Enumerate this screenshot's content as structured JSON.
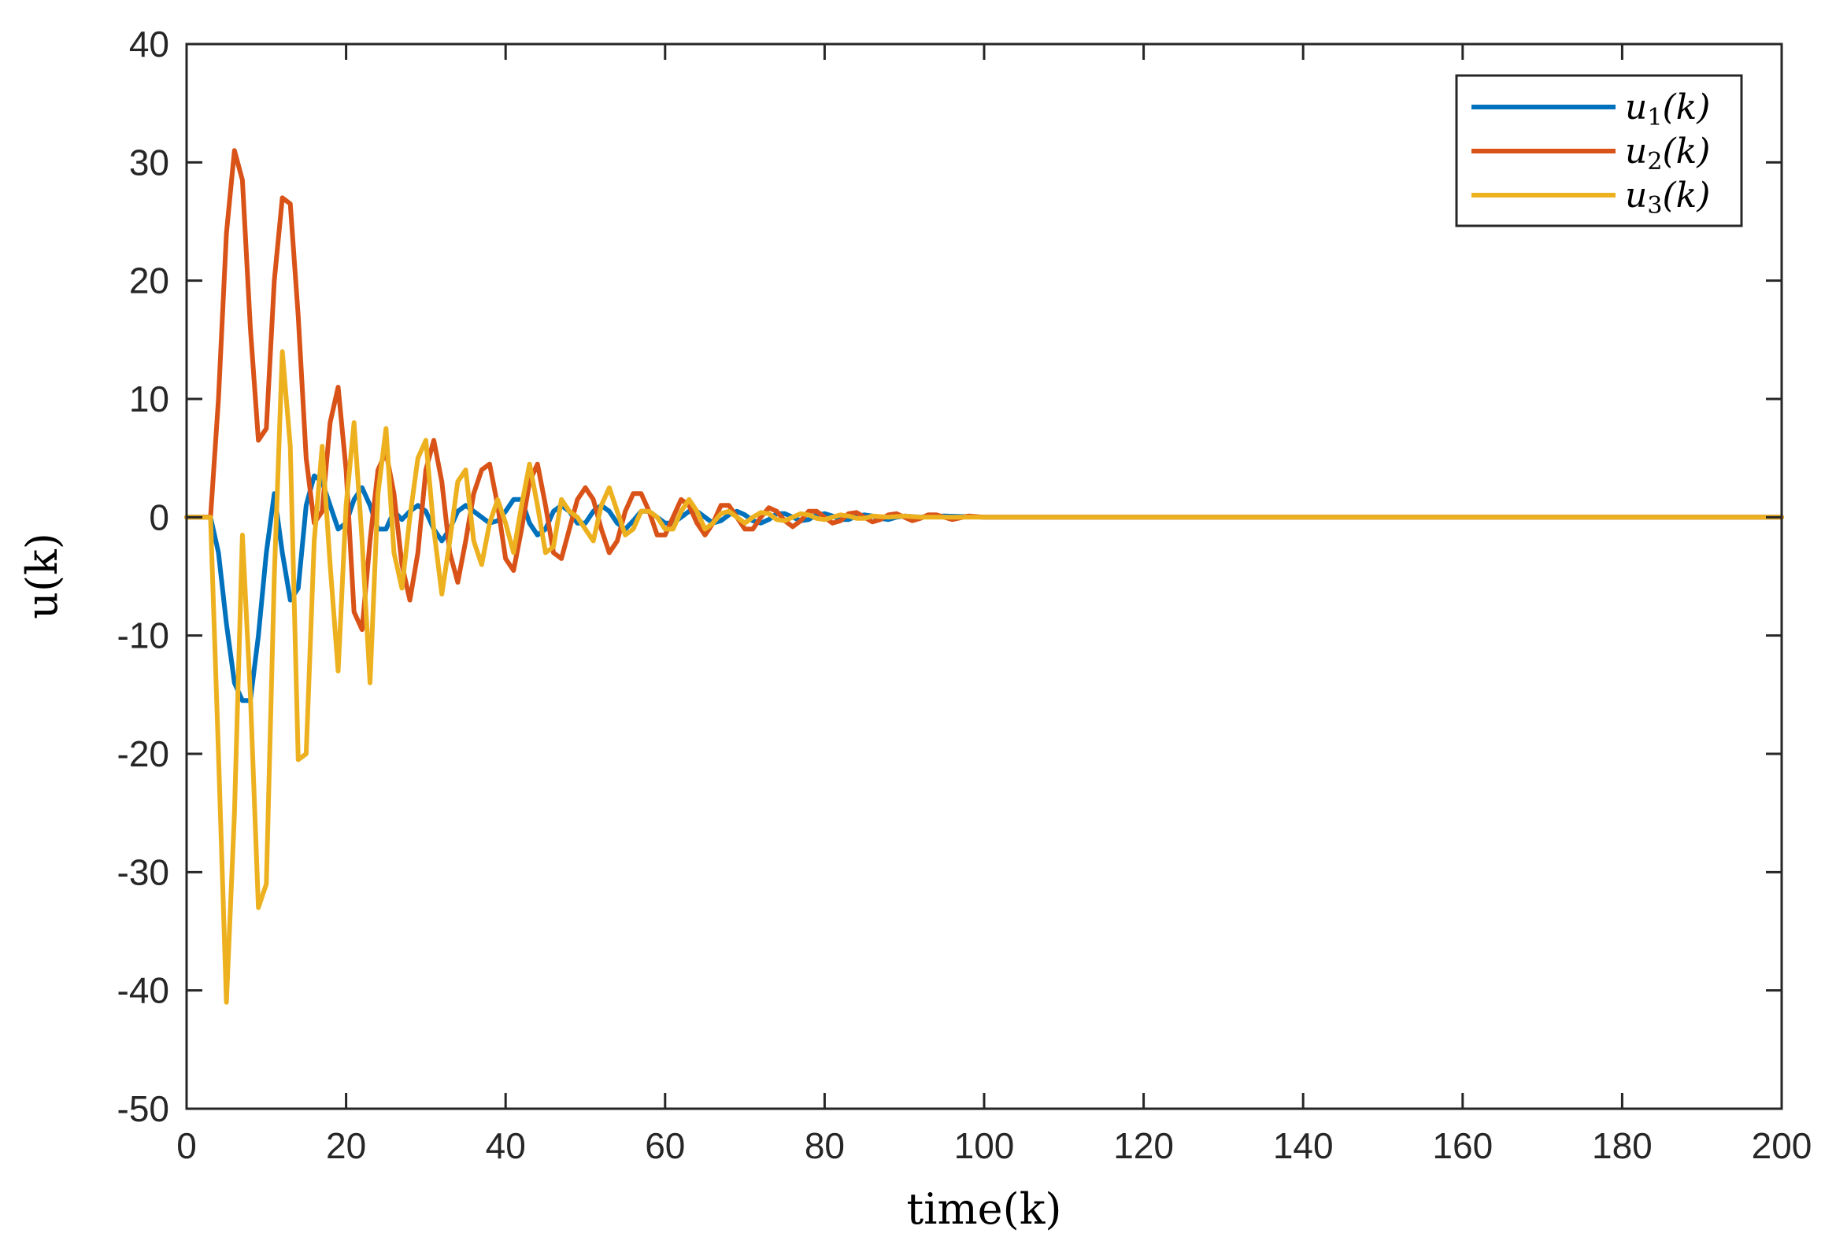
{
  "chart_data": {
    "type": "line",
    "title": "",
    "xlabel": "time(k)",
    "ylabel": "u(k)",
    "xlim": [
      0,
      200
    ],
    "ylim": [
      -50,
      40
    ],
    "xticks": [
      0,
      20,
      40,
      60,
      80,
      100,
      120,
      140,
      160,
      180,
      200
    ],
    "yticks": [
      -50,
      -40,
      -30,
      -20,
      -10,
      0,
      10,
      20,
      30,
      40
    ],
    "grid": false,
    "legend_position": "top-right",
    "series": [
      {
        "name": "u1(k)",
        "label_base": "u",
        "label_sub": "1",
        "label_tail": "(k)",
        "color": "#0072BD",
        "points": [
          [
            0,
            0
          ],
          [
            3,
            0
          ],
          [
            4,
            -3
          ],
          [
            5,
            -9
          ],
          [
            6,
            -14
          ],
          [
            7,
            -15.5
          ],
          [
            8,
            -15.5
          ],
          [
            9,
            -10
          ],
          [
            10,
            -3
          ],
          [
            11,
            2
          ],
          [
            12,
            -3
          ],
          [
            13,
            -7
          ],
          [
            14,
            -6
          ],
          [
            15,
            1
          ],
          [
            16,
            3.5
          ],
          [
            17,
            3
          ],
          [
            18,
            1
          ],
          [
            19,
            -1
          ],
          [
            20,
            -0.5
          ],
          [
            21,
            1.5
          ],
          [
            22,
            2.5
          ],
          [
            23,
            1
          ],
          [
            24,
            -1
          ],
          [
            25,
            -1
          ],
          [
            26,
            0.5
          ],
          [
            27,
            -0.2
          ],
          [
            28,
            0.5
          ],
          [
            29,
            1
          ],
          [
            30,
            0.5
          ],
          [
            31,
            -1
          ],
          [
            32,
            -2
          ],
          [
            33,
            -1
          ],
          [
            34,
            0.5
          ],
          [
            35,
            1
          ],
          [
            36,
            0.5
          ],
          [
            37,
            0
          ],
          [
            38,
            -0.5
          ],
          [
            39,
            -0.3
          ],
          [
            40,
            0.5
          ],
          [
            41,
            1.5
          ],
          [
            42,
            1.5
          ],
          [
            43,
            -0.5
          ],
          [
            44,
            -1.5
          ],
          [
            45,
            -1
          ],
          [
            46,
            0.5
          ],
          [
            47,
            1
          ],
          [
            48,
            0.5
          ],
          [
            49,
            -0.5
          ],
          [
            50,
            -0.5
          ],
          [
            51,
            0.5
          ],
          [
            52,
            1
          ],
          [
            53,
            0.5
          ],
          [
            54,
            -0.5
          ],
          [
            55,
            -1
          ],
          [
            56,
            -0.3
          ],
          [
            57,
            0.5
          ],
          [
            58,
            0.5
          ],
          [
            59,
            0
          ],
          [
            60,
            -0.5
          ],
          [
            61,
            -0.5
          ],
          [
            62,
            0
          ],
          [
            63,
            0.5
          ],
          [
            64,
            0.5
          ],
          [
            65,
            0
          ],
          [
            66,
            -0.5
          ],
          [
            67,
            -0.3
          ],
          [
            68,
            0.2
          ],
          [
            69,
            0.5
          ],
          [
            70,
            0.2
          ],
          [
            71,
            -0.3
          ],
          [
            72,
            -0.5
          ],
          [
            73,
            -0.2
          ],
          [
            74,
            0.3
          ],
          [
            75,
            0.3
          ],
          [
            76,
            0
          ],
          [
            77,
            -0.3
          ],
          [
            78,
            -0.2
          ],
          [
            79,
            0.2
          ],
          [
            80,
            0.3
          ],
          [
            81,
            0.1
          ],
          [
            82,
            -0.2
          ],
          [
            83,
            -0.2
          ],
          [
            84,
            0.1
          ],
          [
            85,
            0.2
          ],
          [
            86,
            0.1
          ],
          [
            87,
            -0.1
          ],
          [
            88,
            -0.2
          ],
          [
            89,
            0
          ],
          [
            90,
            0.1
          ],
          [
            92,
            0
          ],
          [
            95,
            0.1
          ],
          [
            100,
            0
          ],
          [
            110,
            0
          ],
          [
            200,
            0
          ]
        ]
      },
      {
        "name": "u2(k)",
        "label_base": "u",
        "label_sub": "2",
        "label_tail": "(k)",
        "color": "#D95319",
        "points": [
          [
            0,
            0
          ],
          [
            3,
            0
          ],
          [
            4,
            10
          ],
          [
            5,
            24
          ],
          [
            6,
            31
          ],
          [
            7,
            28.5
          ],
          [
            8,
            16
          ],
          [
            9,
            6.5
          ],
          [
            10,
            7.5
          ],
          [
            11,
            20
          ],
          [
            12,
            27
          ],
          [
            13,
            26.5
          ],
          [
            14,
            17
          ],
          [
            15,
            5
          ],
          [
            16,
            -0.5
          ],
          [
            17,
            0.5
          ],
          [
            18,
            8
          ],
          [
            19,
            11
          ],
          [
            20,
            4
          ],
          [
            21,
            -8
          ],
          [
            22,
            -9.5
          ],
          [
            23,
            -2
          ],
          [
            24,
            4
          ],
          [
            25,
            5.5
          ],
          [
            26,
            2
          ],
          [
            27,
            -4
          ],
          [
            28,
            -7
          ],
          [
            29,
            -3
          ],
          [
            30,
            4
          ],
          [
            31,
            6.5
          ],
          [
            32,
            3
          ],
          [
            33,
            -3
          ],
          [
            34,
            -5.5
          ],
          [
            35,
            -2
          ],
          [
            36,
            2
          ],
          [
            37,
            4
          ],
          [
            38,
            4.5
          ],
          [
            39,
            1
          ],
          [
            40,
            -3.5
          ],
          [
            41,
            -4.5
          ],
          [
            42,
            -1
          ],
          [
            43,
            3
          ],
          [
            44,
            4.5
          ],
          [
            45,
            1
          ],
          [
            46,
            -3
          ],
          [
            47,
            -3.5
          ],
          [
            48,
            -1
          ],
          [
            49,
            1.5
          ],
          [
            50,
            2.5
          ],
          [
            51,
            1.5
          ],
          [
            52,
            -1
          ],
          [
            53,
            -3
          ],
          [
            54,
            -2
          ],
          [
            55,
            0.5
          ],
          [
            56,
            2
          ],
          [
            57,
            2
          ],
          [
            58,
            0.5
          ],
          [
            59,
            -1.5
          ],
          [
            60,
            -1.5
          ],
          [
            61,
            0
          ],
          [
            62,
            1.5
          ],
          [
            63,
            1
          ],
          [
            64,
            -0.5
          ],
          [
            65,
            -1.5
          ],
          [
            66,
            -0.5
          ],
          [
            67,
            1
          ],
          [
            68,
            1
          ],
          [
            69,
            0
          ],
          [
            70,
            -1
          ],
          [
            71,
            -1
          ],
          [
            72,
            0
          ],
          [
            73,
            0.8
          ],
          [
            74,
            0.5
          ],
          [
            75,
            -0.3
          ],
          [
            76,
            -0.8
          ],
          [
            77,
            -0.3
          ],
          [
            78,
            0.5
          ],
          [
            79,
            0.5
          ],
          [
            80,
            0
          ],
          [
            81,
            -0.5
          ],
          [
            82,
            -0.3
          ],
          [
            83,
            0.3
          ],
          [
            84,
            0.4
          ],
          [
            85,
            0
          ],
          [
            86,
            -0.4
          ],
          [
            87,
            -0.2
          ],
          [
            88,
            0.2
          ],
          [
            89,
            0.3
          ],
          [
            90,
            0
          ],
          [
            91,
            -0.3
          ],
          [
            92,
            -0.1
          ],
          [
            93,
            0.2
          ],
          [
            94,
            0.2
          ],
          [
            95,
            0
          ],
          [
            96,
            -0.2
          ],
          [
            98,
            0.1
          ],
          [
            100,
            0
          ],
          [
            105,
            0
          ],
          [
            110,
            0
          ],
          [
            200,
            0
          ]
        ]
      },
      {
        "name": "u3(k)",
        "label_base": "u",
        "label_sub": "3",
        "label_tail": "(k)",
        "color": "#EDB120",
        "points": [
          [
            0,
            0
          ],
          [
            3,
            0
          ],
          [
            4,
            -20
          ],
          [
            5,
            -41
          ],
          [
            6,
            -25
          ],
          [
            7,
            -1.5
          ],
          [
            8,
            -15
          ],
          [
            9,
            -33
          ],
          [
            10,
            -31
          ],
          [
            11,
            -5
          ],
          [
            12,
            14
          ],
          [
            13,
            6
          ],
          [
            14,
            -20.5
          ],
          [
            15,
            -20
          ],
          [
            16,
            -2
          ],
          [
            17,
            6
          ],
          [
            18,
            -4
          ],
          [
            19,
            -13
          ],
          [
            20,
            1
          ],
          [
            21,
            8
          ],
          [
            22,
            -2
          ],
          [
            23,
            -14
          ],
          [
            24,
            2
          ],
          [
            25,
            7.5
          ],
          [
            26,
            -3
          ],
          [
            27,
            -6
          ],
          [
            28,
            0
          ],
          [
            29,
            5
          ],
          [
            30,
            6.5
          ],
          [
            31,
            -1
          ],
          [
            32,
            -6.5
          ],
          [
            33,
            -2
          ],
          [
            34,
            3
          ],
          [
            35,
            4
          ],
          [
            36,
            -2
          ],
          [
            37,
            -4
          ],
          [
            38,
            -0.5
          ],
          [
            39,
            1.5
          ],
          [
            40,
            -0.5
          ],
          [
            41,
            -3
          ],
          [
            42,
            1
          ],
          [
            43,
            4.5
          ],
          [
            44,
            1
          ],
          [
            45,
            -3
          ],
          [
            46,
            -2.5
          ],
          [
            47,
            1.5
          ],
          [
            48,
            0.5
          ],
          [
            49,
            0
          ],
          [
            50,
            -1
          ],
          [
            51,
            -2
          ],
          [
            52,
            1
          ],
          [
            53,
            2.5
          ],
          [
            54,
            0.5
          ],
          [
            55,
            -1.5
          ],
          [
            56,
            -1
          ],
          [
            57,
            0.5
          ],
          [
            58,
            0.5
          ],
          [
            59,
            0
          ],
          [
            60,
            -1
          ],
          [
            61,
            -1
          ],
          [
            62,
            0.5
          ],
          [
            63,
            1.5
          ],
          [
            64,
            0.5
          ],
          [
            65,
            -1
          ],
          [
            66,
            -0.5
          ],
          [
            67,
            0.3
          ],
          [
            68,
            0.5
          ],
          [
            69,
            0
          ],
          [
            70,
            -0.5
          ],
          [
            71,
            0
          ],
          [
            72,
            0.4
          ],
          [
            73,
            0.3
          ],
          [
            74,
            -0.2
          ],
          [
            75,
            -0.3
          ],
          [
            76,
            0
          ],
          [
            77,
            0.3
          ],
          [
            78,
            0.2
          ],
          [
            79,
            -0.1
          ],
          [
            80,
            -0.2
          ],
          [
            81,
            0
          ],
          [
            82,
            0.2
          ],
          [
            83,
            0.1
          ],
          [
            84,
            -0.1
          ],
          [
            85,
            -0.1
          ],
          [
            86,
            0.1
          ],
          [
            88,
            0
          ],
          [
            90,
            0.1
          ],
          [
            92,
            0
          ],
          [
            100,
            0
          ],
          [
            200,
            0
          ]
        ]
      }
    ]
  }
}
